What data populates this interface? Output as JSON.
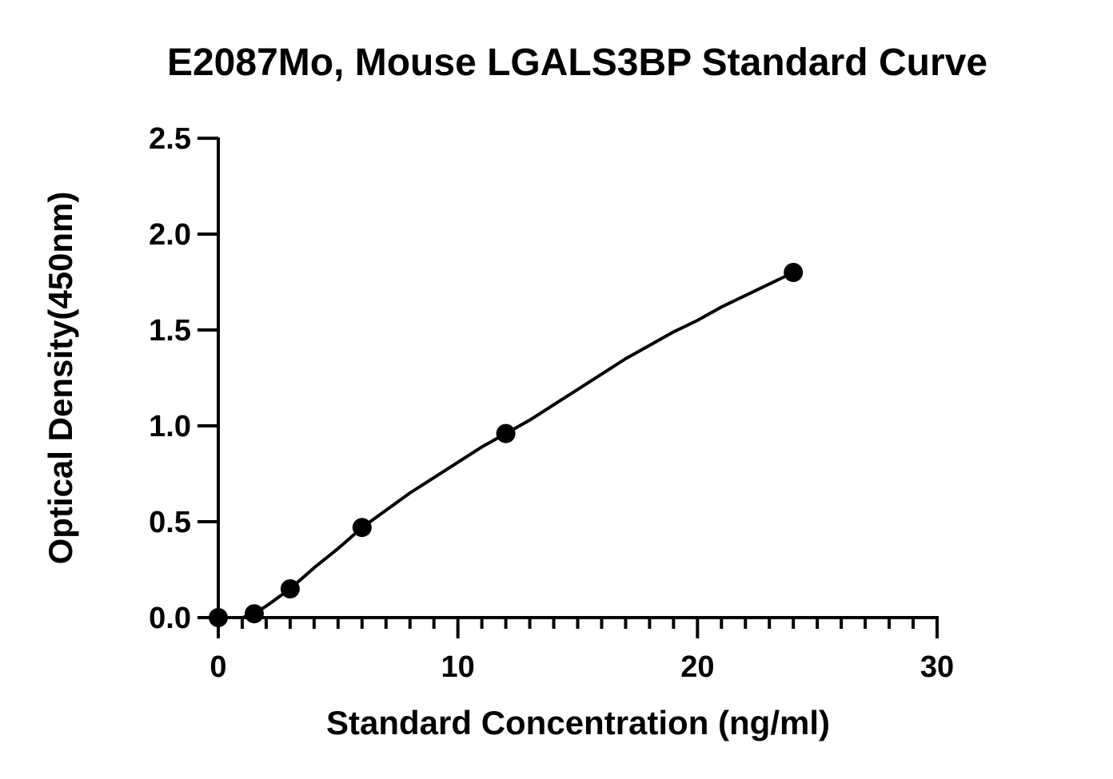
{
  "chart_data": {
    "type": "scatter",
    "title": "E2087Mo, Mouse LGALS3BP Standard Curve",
    "xlabel": "Standard Concentration (ng/ml)",
    "ylabel": "Optical Density(450nm)",
    "xlim": [
      0,
      30
    ],
    "ylim": [
      0,
      2.5
    ],
    "x_ticks": [
      "0",
      "10",
      "20",
      "30"
    ],
    "y_ticks": [
      "0.0",
      "0.5",
      "1.0",
      "1.5",
      "2.0",
      "2.5"
    ],
    "x_minor_step": 1,
    "grid": false,
    "legend": "none",
    "series": [
      {
        "x": [
          0,
          1.5,
          3,
          6,
          12,
          24
        ],
        "y": [
          0.0,
          0.02,
          0.15,
          0.47,
          0.96,
          1.8
        ]
      }
    ],
    "fit_curve": {
      "type": "smooth",
      "x": [
        0.5,
        1,
        1.5,
        2,
        3,
        4,
        5,
        6,
        7,
        8,
        9,
        10,
        11,
        12,
        13,
        14,
        15,
        16,
        17,
        18,
        19,
        20,
        21,
        22,
        23,
        24
      ],
      "y": [
        0.0,
        0.0,
        0.02,
        0.06,
        0.15,
        0.26,
        0.36,
        0.47,
        0.56,
        0.65,
        0.73,
        0.81,
        0.89,
        0.96,
        1.03,
        1.11,
        1.19,
        1.27,
        1.35,
        1.42,
        1.49,
        1.55,
        1.62,
        1.68,
        1.74,
        1.8
      ]
    },
    "colors": {
      "marker": "#000000",
      "line": "#000000",
      "axis": "#000000",
      "background": "#ffffff"
    }
  }
}
